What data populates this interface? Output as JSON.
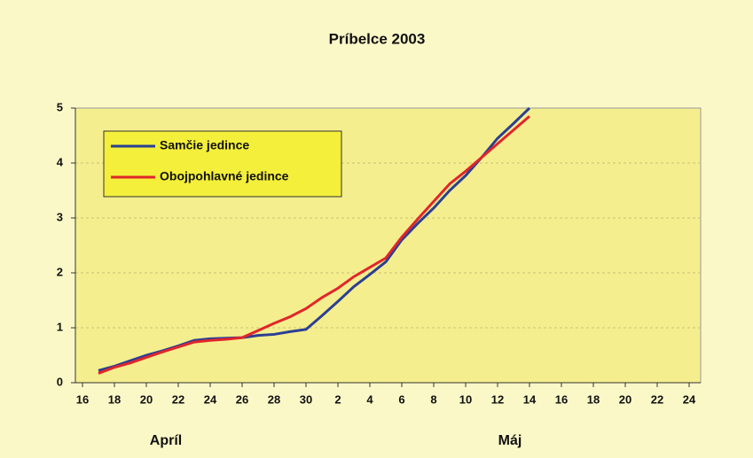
{
  "chart_data": {
    "type": "line",
    "title": "Príbelce 2003",
    "categories": [
      "16",
      null,
      "18",
      null,
      "20",
      null,
      "22",
      null,
      "24",
      null,
      "26",
      null,
      "28",
      null,
      "30",
      null,
      "2",
      null,
      "4",
      null,
      "6",
      null,
      "8",
      null,
      "10",
      null,
      "12",
      null,
      "14",
      null,
      "16",
      null,
      "18",
      null,
      "20",
      null,
      "22",
      null,
      "24"
    ],
    "series": [
      {
        "name": "Samčie jedince",
        "color": "#2b3f93",
        "values": [
          null,
          0.22,
          0.3,
          0.4,
          0.5,
          0.58,
          0.67,
          0.77,
          0.8,
          0.81,
          0.82,
          0.86,
          0.88,
          0.93,
          0.97,
          1.22,
          1.48,
          1.75,
          1.97,
          2.2,
          2.6,
          2.9,
          3.18,
          3.5,
          3.77,
          4.1,
          4.45,
          4.72,
          5.0,
          null,
          null,
          null,
          null,
          null,
          null,
          null,
          null,
          null,
          null
        ]
      },
      {
        "name": "Obojpohlavné jedince",
        "color": "#e0262b",
        "values": [
          null,
          0.17,
          0.28,
          0.36,
          0.46,
          0.56,
          0.65,
          0.74,
          0.77,
          0.79,
          0.82,
          0.95,
          1.08,
          1.2,
          1.35,
          1.55,
          1.72,
          1.93,
          2.1,
          2.27,
          2.65,
          2.98,
          3.3,
          3.62,
          3.85,
          4.1,
          4.35,
          4.6,
          4.85,
          null,
          null,
          null,
          null,
          null,
          null,
          null,
          null,
          null,
          null
        ]
      }
    ],
    "month_labels": [
      "Apríl",
      "Máj"
    ],
    "ylim": [
      0,
      5
    ],
    "yticks": [
      0,
      1,
      2,
      3,
      4,
      5
    ],
    "grid": true,
    "legend": "top-left"
  }
}
